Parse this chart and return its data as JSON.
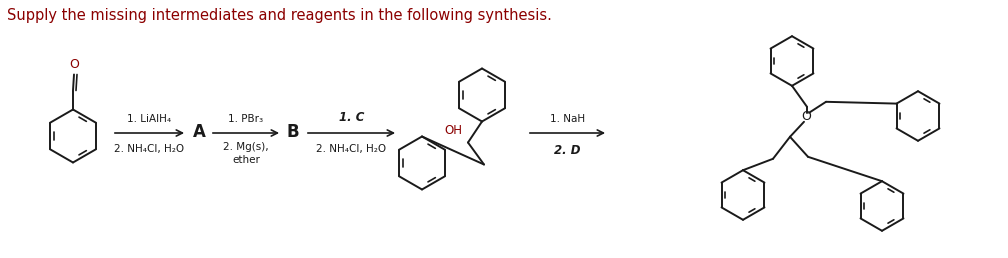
{
  "title": "Supply the missing intermediates and reagents in the following synthesis.",
  "title_color": "#8B0000",
  "title_fontsize": 10.5,
  "background_color": "#ffffff",
  "line_color": "#1a1a1a",
  "step1_reagents_top": "1. LiAlH₄",
  "step1_reagents_bot": "2. NH₄Cl, H₂O",
  "step2_reagents_top": "1. PBr₃",
  "step2_reagents_mid": "2. Mg(s),",
  "step2_reagents_bot": "ether",
  "step3_reagents_top": "1. C",
  "step3_reagents_bot": "2. NH₄Cl, H₂O",
  "step4_reagents_top": "1. NaH",
  "step4_reagents_bot": "2. D",
  "label_A": "A",
  "label_B": "B",
  "oh_color": "#8B0000",
  "o_color": "#8B0000"
}
